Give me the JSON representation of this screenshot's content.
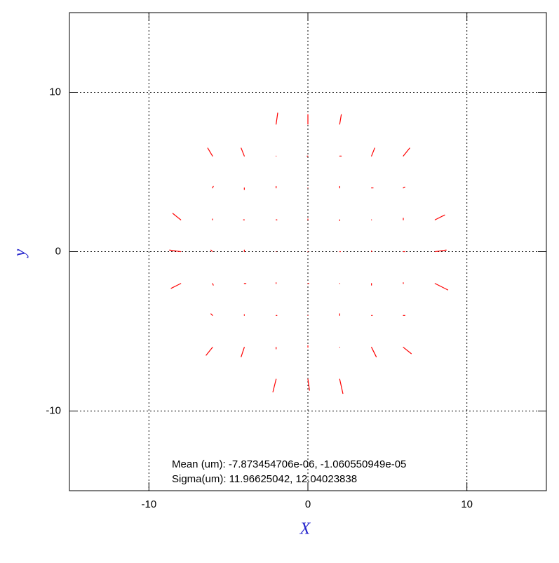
{
  "chart_data": {
    "type": "quiver",
    "xlabel": "X",
    "ylabel": "y",
    "xlim": [
      -15,
      15
    ],
    "ylim": [
      -15,
      15
    ],
    "xticks": [
      -10,
      0,
      10
    ],
    "yticks": [
      -10,
      0,
      10
    ],
    "grid": true,
    "color": "#ff0000",
    "annotations": [
      "Mean (um): -7.873454706e-06, -1.060550949e-05",
      "Sigma(um): 11.96625042, 12.04023838"
    ],
    "x": [
      -8,
      -8,
      -8,
      -6,
      -6,
      -6,
      -6,
      -6,
      -6,
      -6,
      -4,
      -4,
      -4,
      -4,
      -4,
      -4,
      -4,
      -2,
      -2,
      -2,
      -2,
      -2,
      -2,
      -2,
      -2,
      -2,
      0,
      0,
      0,
      0,
      0,
      0,
      0,
      0,
      0,
      2,
      2,
      2,
      2,
      2,
      2,
      2,
      2,
      2,
      4,
      4,
      4,
      4,
      4,
      4,
      4,
      6,
      6,
      6,
      6,
      6,
      6,
      6,
      8,
      8,
      8
    ],
    "y": [
      -2,
      0,
      2,
      -6,
      -4,
      -2,
      0,
      2,
      4,
      6,
      -6,
      -4,
      -2,
      0,
      2,
      4,
      6,
      -8,
      -6,
      -4,
      -2,
      0,
      2,
      4,
      6,
      8,
      -8,
      -6,
      -4,
      -2,
      0,
      2,
      4,
      6,
      8,
      -8,
      -6,
      -4,
      -2,
      0,
      2,
      4,
      6,
      8,
      -6,
      -4,
      -2,
      0,
      2,
      4,
      6,
      -6,
      -4,
      -2,
      0,
      2,
      4,
      6,
      -2,
      0,
      2
    ],
    "u": [
      -0.6,
      -0.7,
      -0.5,
      -0.4,
      -0.1,
      0.05,
      -0.1,
      0,
      0.05,
      -0.3,
      -0.2,
      0,
      0.1,
      0,
      -0.05,
      0,
      -0.2,
      -0.2,
      0,
      0.05,
      0,
      0,
      0.05,
      0,
      0,
      0.1,
      0.1,
      0,
      0,
      0.05,
      0,
      0,
      0,
      -0.05,
      0,
      0.2,
      0,
      0,
      0,
      0.05,
      0,
      0,
      0.1,
      0.1,
      0.3,
      0.05,
      0,
      0,
      0,
      0.1,
      0.2,
      0.5,
      0.1,
      0,
      0.1,
      0,
      0.1,
      0.4,
      0.8,
      0.7,
      0.6
    ],
    "v": [
      -0.3,
      0.1,
      0.4,
      -0.5,
      0.1,
      -0.1,
      0.1,
      0.05,
      0.1,
      0.5,
      -0.6,
      0.05,
      0,
      0.1,
      0,
      -0.1,
      0.5,
      -0.8,
      -0.1,
      0,
      0.05,
      0,
      0,
      0.1,
      0,
      0.7,
      -0.7,
      0.1,
      0,
      0,
      0,
      0.05,
      0,
      0,
      0.6,
      -0.9,
      0,
      0.1,
      0,
      0,
      -0.05,
      0.1,
      0,
      0.6,
      -0.6,
      0,
      -0.1,
      0.05,
      0,
      0,
      0.5,
      -0.4,
      0,
      0.05,
      0,
      0.1,
      0.05,
      0.5,
      -0.4,
      0.1,
      0.3
    ]
  }
}
